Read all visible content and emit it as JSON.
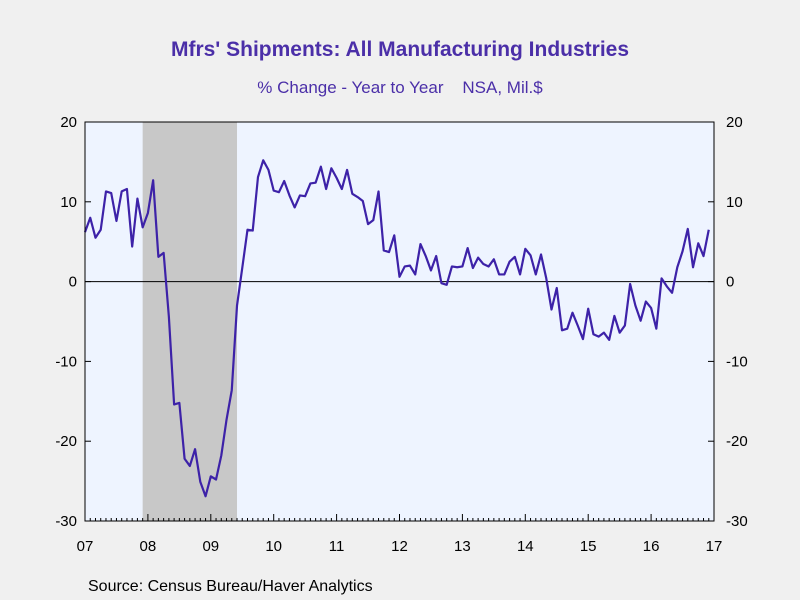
{
  "title": "Mfrs' Shipments: All Manufacturing Industries",
  "subtitle": "% Change - Year to Year    NSA, Mil.$",
  "source": "Source:  Census Bureau/Haver Analytics",
  "colors": {
    "line": "#3d22a8",
    "plot_background": "#eef4ff",
    "recession_shading": "#c8c8c8",
    "page_background": "#f0f0f0"
  },
  "chart_data": {
    "type": "line",
    "title": "Mfrs' Shipments: All Manufacturing Industries",
    "subtitle": "% Change - Year to Year    NSA, Mil.$",
    "x_start": "2007-01",
    "x_end": "2017-01",
    "x_tick_labels": [
      "07",
      "08",
      "09",
      "10",
      "11",
      "12",
      "13",
      "14",
      "15",
      "16",
      "17"
    ],
    "y_tick_values": [
      20,
      10,
      0,
      -10,
      -20,
      -30
    ],
    "y_tick_labels_left": [
      "20",
      "10",
      "0",
      "-10",
      "-20",
      "-30"
    ],
    "y_tick_labels_right": [
      "20",
      "10",
      "0",
      "-10",
      "-20",
      "-30"
    ],
    "ylim": [
      -30,
      20
    ],
    "zero_line": true,
    "grid": false,
    "recession_periods": [
      {
        "start": "2007-12",
        "end": "2009-06"
      }
    ],
    "series": [
      {
        "start": "2007-01",
        "frequency": "monthly",
        "values": [
          6.2,
          8.0,
          5.5,
          6.5,
          11.3,
          11.1,
          7.6,
          11.3,
          11.6,
          4.4,
          10.4,
          6.8,
          8.6,
          12.7,
          3.1,
          3.6,
          -4.4,
          -15.4,
          -15.2,
          -22.2,
          -23.1,
          -21.0,
          -25.1,
          -26.9,
          -24.4,
          -24.8,
          -21.8,
          -17.3,
          -13.6,
          -3.0,
          1.7,
          6.5,
          6.4,
          13.1,
          15.2,
          14.0,
          11.4,
          11.2,
          12.6,
          10.8,
          9.3,
          10.8,
          10.7,
          12.3,
          12.4,
          14.4,
          11.6,
          14.2,
          13.0,
          11.6,
          14.0,
          11.0,
          10.6,
          10.1,
          7.2,
          7.7,
          11.3,
          3.9,
          3.7,
          5.8,
          0.6,
          1.9,
          2.0,
          0.9,
          4.7,
          3.2,
          1.4,
          3.2,
          -0.2,
          -0.4,
          1.9,
          1.8,
          1.9,
          4.2,
          1.7,
          3.0,
          2.2,
          1.9,
          2.8,
          0.9,
          0.9,
          2.5,
          3.1,
          0.9,
          4.1,
          3.3,
          0.9,
          3.4,
          0.4,
          -3.5,
          -0.8,
          -6.1,
          -5.9,
          -3.9,
          -5.5,
          -7.2,
          -3.4,
          -6.6,
          -6.9,
          -6.4,
          -7.3,
          -4.3,
          -6.4,
          -5.5,
          -0.3,
          -3.0,
          -4.9,
          -2.5,
          -3.3,
          -5.9,
          0.4,
          -0.6,
          -1.4,
          1.8,
          3.8,
          6.6,
          1.8,
          4.8,
          3.2,
          6.5
        ]
      }
    ]
  }
}
